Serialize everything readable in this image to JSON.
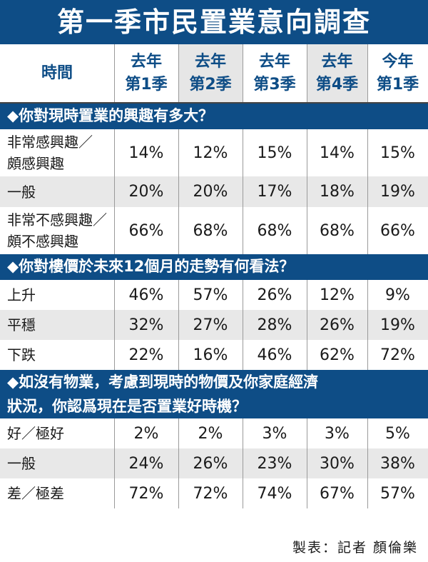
{
  "title": "第一季市民置業意向調查",
  "header": {
    "label": "時間",
    "periods": [
      "去年\n第1季",
      "去年\n第2季",
      "去年\n第3季",
      "去年\n第4季",
      "今年\n第1季"
    ]
  },
  "sections": [
    {
      "title": "◆你對現時置業的興趣有多大？",
      "rows": [
        {
          "label": "非常感興趣／\n頗感興趣",
          "values": [
            "14%",
            "12%",
            "15%",
            "14%",
            "15%"
          ]
        },
        {
          "label": "一般",
          "values": [
            "20%",
            "20%",
            "17%",
            "18%",
            "19%"
          ]
        },
        {
          "label": "非常不感興趣／\n頗不感興趣",
          "values": [
            "66%",
            "68%",
            "68%",
            "68%",
            "66%"
          ]
        }
      ]
    },
    {
      "title": "◆你對樓價於未來12個月的走勢有何看法？",
      "rows": [
        {
          "label": "上升",
          "values": [
            "46%",
            "57%",
            "26%",
            "12%",
            "9%"
          ]
        },
        {
          "label": "平穩",
          "values": [
            "32%",
            "27%",
            "28%",
            "26%",
            "19%"
          ]
        },
        {
          "label": "下跌",
          "values": [
            "22%",
            "16%",
            "46%",
            "62%",
            "72%"
          ]
        }
      ]
    },
    {
      "title": "◆如沒有物業，考慮到現時的物價及你家庭經濟\n狀況，你認爲現在是否置業好時機？",
      "rows": [
        {
          "label": "好／極好",
          "values": [
            "2%",
            "2%",
            "3%",
            "3%",
            "5%"
          ]
        },
        {
          "label": "一般",
          "values": [
            "24%",
            "26%",
            "23%",
            "30%",
            "38%"
          ]
        },
        {
          "label": "差／極差",
          "values": [
            "72%",
            "72%",
            "74%",
            "67%",
            "57%"
          ]
        }
      ]
    }
  ],
  "footer": "製表：記者 顏倫樂"
}
